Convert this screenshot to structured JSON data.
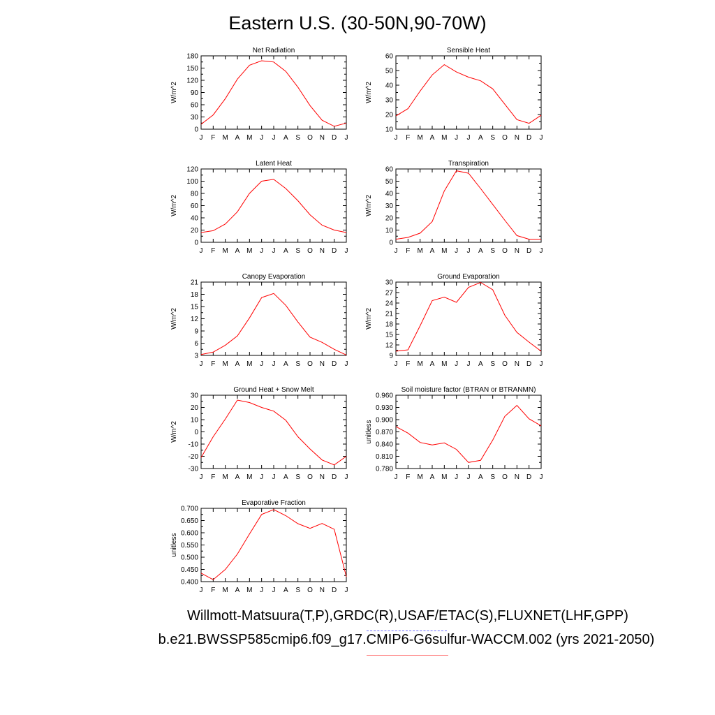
{
  "title": "Eastern U.S. (30-50N,90-70W)",
  "footer": {
    "observations": "Willmott-Matsuura(T,P),GRDC(R),USAF/ETAC(S),FLUXNET(LHF,GPP)",
    "case": "b.e21.BWSSP585cmip6.f09_g17.CMIP6-G6sulfur-WACCM.002 (yrs 2021-2050)"
  },
  "colors": {
    "series": "#ff0000",
    "axes": "#000000",
    "obs_underline": "#6a6aff",
    "case_underline": "#ff7a7a"
  },
  "chart_data": [
    {
      "type": "line",
      "title": "Net Radiation",
      "ylabel": "W/m^2",
      "x": [
        "J",
        "F",
        "M",
        "A",
        "M",
        "J",
        "J",
        "A",
        "S",
        "O",
        "N",
        "D",
        "J"
      ],
      "ylim": [
        0,
        180
      ],
      "yticks": [
        "0",
        "30",
        "60",
        "90",
        "120",
        "150",
        "180"
      ],
      "series": [
        {
          "values": [
            12,
            35,
            75,
            123,
            157,
            168,
            165,
            142,
            103,
            58,
            22,
            7,
            15
          ]
        }
      ]
    },
    {
      "type": "line",
      "title": "Sensible Heat",
      "ylabel": "W/m^2",
      "x": [
        "J",
        "F",
        "M",
        "A",
        "M",
        "J",
        "J",
        "A",
        "S",
        "O",
        "N",
        "D",
        "J"
      ],
      "ylim": [
        10,
        60
      ],
      "yticks": [
        "10",
        "20",
        "30",
        "40",
        "50",
        "60"
      ],
      "series": [
        {
          "values": [
            19,
            24,
            36,
            47,
            54,
            49,
            45.5,
            43,
            37.5,
            27,
            16.5,
            14,
            19.5
          ]
        }
      ]
    },
    {
      "type": "line",
      "title": "Latent Heat",
      "ylabel": "W/m^2",
      "x": [
        "J",
        "F",
        "M",
        "A",
        "M",
        "J",
        "J",
        "A",
        "S",
        "O",
        "N",
        "D",
        "J"
      ],
      "ylim": [
        0,
        120
      ],
      "yticks": [
        "0",
        "20",
        "40",
        "60",
        "80",
        "100",
        "120"
      ],
      "series": [
        {
          "values": [
            16,
            19,
            30,
            50,
            80,
            100,
            103,
            88,
            68,
            45,
            28,
            20,
            16
          ]
        }
      ]
    },
    {
      "type": "line",
      "title": "Transpiration",
      "ylabel": "W/m^2",
      "x": [
        "J",
        "F",
        "M",
        "A",
        "M",
        "J",
        "J",
        "A",
        "S",
        "O",
        "N",
        "D",
        "J"
      ],
      "ylim": [
        0,
        60
      ],
      "yticks": [
        "0",
        "10",
        "20",
        "30",
        "40",
        "50",
        "60"
      ],
      "series": [
        {
          "values": [
            2.5,
            4,
            7.5,
            17,
            42,
            58.5,
            56.5,
            44,
            31,
            18,
            5.5,
            2.5,
            2.5
          ]
        }
      ]
    },
    {
      "type": "line",
      "title": "Canopy Evaporation",
      "ylabel": "W/m^2",
      "x": [
        "J",
        "F",
        "M",
        "A",
        "M",
        "J",
        "J",
        "A",
        "S",
        "O",
        "N",
        "D",
        "J"
      ],
      "ylim": [
        3,
        21
      ],
      "yticks": [
        "3",
        "6",
        "9",
        "12",
        "15",
        "18",
        "21"
      ],
      "series": [
        {
          "values": [
            3.2,
            3.8,
            5.5,
            7.8,
            12.2,
            17.2,
            18.2,
            15.3,
            11.2,
            7.5,
            6.2,
            4.5,
            3.1
          ]
        }
      ]
    },
    {
      "type": "line",
      "title": "Ground Evaporation",
      "ylabel": "W/m^2",
      "x": [
        "J",
        "F",
        "M",
        "A",
        "M",
        "J",
        "J",
        "A",
        "S",
        "O",
        "N",
        "D",
        "J"
      ],
      "ylim": [
        9,
        30
      ],
      "yticks": [
        "9",
        "12",
        "15",
        "18",
        "21",
        "24",
        "27",
        "30"
      ],
      "series": [
        {
          "values": [
            10.2,
            10.6,
            17.5,
            24.7,
            25.7,
            24.2,
            28.5,
            29.9,
            27.8,
            20.5,
            15.6,
            12.8,
            10.2
          ]
        }
      ]
    },
    {
      "type": "line",
      "title": "Ground Heat + Snow Melt",
      "ylabel": "W/m^2",
      "x": [
        "J",
        "F",
        "M",
        "A",
        "M",
        "J",
        "J",
        "A",
        "S",
        "O",
        "N",
        "D",
        "J"
      ],
      "ylim": [
        -30,
        30
      ],
      "yticks": [
        "-30",
        "-20",
        "-10",
        "0",
        "10",
        "20",
        "30"
      ],
      "series": [
        {
          "values": [
            -21,
            -4,
            10.5,
            26,
            24,
            20,
            17,
            9.5,
            -4,
            -14,
            -23,
            -27,
            -20
          ]
        }
      ]
    },
    {
      "type": "line",
      "title": "Soil moisture factor (BTRAN or BTRANMN)",
      "ylabel": "unitless",
      "x": [
        "J",
        "F",
        "M",
        "A",
        "M",
        "J",
        "J",
        "A",
        "S",
        "O",
        "N",
        "D",
        "J"
      ],
      "ylim": [
        0.78,
        0.96
      ],
      "yticks": [
        "0.780",
        "0.810",
        "0.840",
        "0.870",
        "0.900",
        "0.930",
        "0.960"
      ],
      "series": [
        {
          "values": [
            0.883,
            0.867,
            0.844,
            0.838,
            0.843,
            0.827,
            0.795,
            0.8,
            0.85,
            0.908,
            0.935,
            0.902,
            0.885
          ]
        }
      ]
    },
    {
      "type": "line",
      "title": "Evaporative Fraction",
      "ylabel": "unitless",
      "x": [
        "J",
        "F",
        "M",
        "A",
        "M",
        "J",
        "J",
        "A",
        "S",
        "O",
        "N",
        "D",
        "J"
      ],
      "ylim": [
        0.4,
        0.7
      ],
      "yticks": [
        "0.400",
        "0.450",
        "0.500",
        "0.550",
        "0.600",
        "0.650",
        "0.700"
      ],
      "series": [
        {
          "values": [
            0.435,
            0.408,
            0.45,
            0.513,
            0.595,
            0.675,
            0.695,
            0.67,
            0.637,
            0.618,
            0.638,
            0.614,
            0.42
          ]
        }
      ]
    }
  ]
}
